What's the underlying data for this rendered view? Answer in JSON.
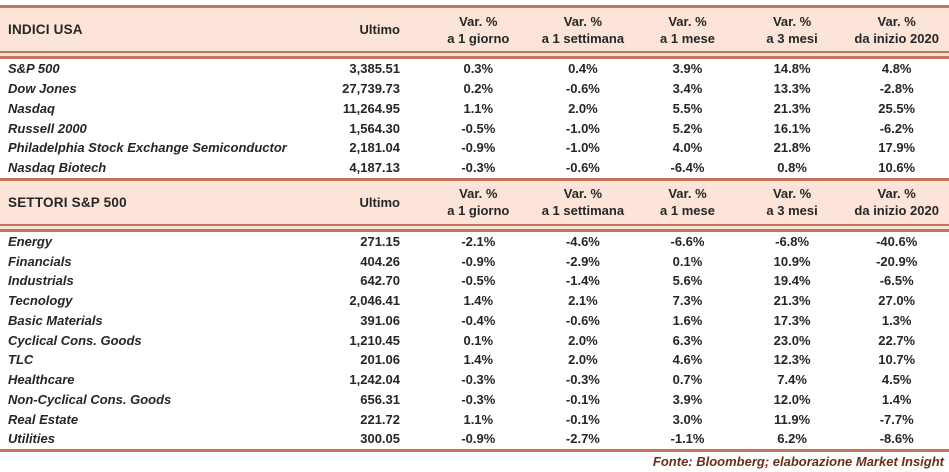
{
  "columns": {
    "ultimo": "Ultimo",
    "var_label": "Var. %",
    "periods": [
      "a 1 giorno",
      "a 1 settimana",
      "a 1 mese",
      "a 3 mesi",
      "da inizio 2020"
    ]
  },
  "sections": [
    {
      "title": "INDICI USA",
      "rows": [
        {
          "name": "S&P 500",
          "ultimo": "3,385.51",
          "vars": [
            "0.3%",
            "0.4%",
            "3.9%",
            "14.8%",
            "4.8%"
          ]
        },
        {
          "name": "Dow Jones",
          "ultimo": "27,739.73",
          "vars": [
            "0.2%",
            "-0.6%",
            "3.4%",
            "13.3%",
            "-2.8%"
          ]
        },
        {
          "name": "Nasdaq",
          "ultimo": "11,264.95",
          "vars": [
            "1.1%",
            "2.0%",
            "5.5%",
            "21.3%",
            "25.5%"
          ]
        },
        {
          "name": "Russell 2000",
          "ultimo": "1,564.30",
          "vars": [
            "-0.5%",
            "-1.0%",
            "5.2%",
            "16.1%",
            "-6.2%"
          ]
        },
        {
          "name": "Philadelphia Stock Exchange Semiconductor",
          "ultimo": "2,181.04",
          "vars": [
            "-0.9%",
            "-1.0%",
            "4.0%",
            "21.8%",
            "17.9%"
          ]
        },
        {
          "name": "Nasdaq Biotech",
          "ultimo": "4,187.13",
          "vars": [
            "-0.3%",
            "-0.6%",
            "-6.4%",
            "0.8%",
            "10.6%"
          ]
        }
      ]
    },
    {
      "title": "SETTORI S&P 500",
      "rows": [
        {
          "name": "Energy",
          "ultimo": "271.15",
          "vars": [
            "-2.1%",
            "-4.6%",
            "-6.6%",
            "-6.8%",
            "-40.6%"
          ]
        },
        {
          "name": "Financials",
          "ultimo": "404.26",
          "vars": [
            "-0.9%",
            "-2.9%",
            "0.1%",
            "10.9%",
            "-20.9%"
          ]
        },
        {
          "name": "Industrials",
          "ultimo": "642.70",
          "vars": [
            "-0.5%",
            "-1.4%",
            "5.6%",
            "19.4%",
            "-6.5%"
          ]
        },
        {
          "name": "Tecnology",
          "ultimo": "2,046.41",
          "vars": [
            "1.4%",
            "2.1%",
            "7.3%",
            "21.3%",
            "27.0%"
          ]
        },
        {
          "name": "Basic Materials",
          "ultimo": "391.06",
          "vars": [
            "-0.4%",
            "-0.6%",
            "1.6%",
            "17.3%",
            "1.3%"
          ]
        },
        {
          "name": "Cyclical Cons. Goods",
          "ultimo": "1,210.45",
          "vars": [
            "0.1%",
            "2.0%",
            "6.3%",
            "23.0%",
            "22.7%"
          ]
        },
        {
          "name": "TLC",
          "ultimo": "201.06",
          "vars": [
            "1.4%",
            "2.0%",
            "4.6%",
            "12.3%",
            "10.7%"
          ]
        },
        {
          "name": "Healthcare",
          "ultimo": "1,242.04",
          "vars": [
            "-0.3%",
            "-0.3%",
            "0.7%",
            "7.4%",
            "4.5%"
          ]
        },
        {
          "name": "Non-Cyclical Cons. Goods",
          "ultimo": "656.31",
          "vars": [
            "-0.3%",
            "-0.1%",
            "3.9%",
            "12.0%",
            "1.4%"
          ]
        },
        {
          "name": "Real Estate",
          "ultimo": "221.72",
          "vars": [
            "1.1%",
            "-0.1%",
            "3.0%",
            "11.9%",
            "-7.7%"
          ]
        },
        {
          "name": "Utilities",
          "ultimo": "300.05",
          "vars": [
            "-0.9%",
            "-2.7%",
            "-1.1%",
            "6.2%",
            "-8.6%"
          ]
        }
      ]
    }
  ],
  "footer": {
    "source": "Fonte: Bloomberg; elaborazione Market Insight"
  },
  "colors": {
    "header_bg": "#fce5d8",
    "rule_line": "#c4735c",
    "text": "#262626",
    "footer_text": "#6b2e17"
  },
  "chart_data": [
    {
      "type": "table",
      "title": "INDICI USA",
      "columns": [
        "Ultimo",
        "Var. % a 1 giorno",
        "Var. % a 1 settimana",
        "Var. % a 1 mese",
        "Var. % a 3 mesi",
        "Var. % da inizio 2020"
      ],
      "rows": [
        [
          "S&P 500",
          3385.51,
          0.3,
          0.4,
          3.9,
          14.8,
          4.8
        ],
        [
          "Dow Jones",
          27739.73,
          0.2,
          -0.6,
          3.4,
          13.3,
          -2.8
        ],
        [
          "Nasdaq",
          11264.95,
          1.1,
          2.0,
          5.5,
          21.3,
          25.5
        ],
        [
          "Russell 2000",
          1564.3,
          -0.5,
          -1.0,
          5.2,
          16.1,
          -6.2
        ],
        [
          "Philadelphia Stock Exchange Semiconductor",
          2181.04,
          -0.9,
          -1.0,
          4.0,
          21.8,
          17.9
        ],
        [
          "Nasdaq Biotech",
          4187.13,
          -0.3,
          -0.6,
          -6.4,
          0.8,
          10.6
        ]
      ]
    },
    {
      "type": "table",
      "title": "SETTORI S&P 500",
      "columns": [
        "Ultimo",
        "Var. % a 1 giorno",
        "Var. % a 1 settimana",
        "Var. % a 1 mese",
        "Var. % a 3 mesi",
        "Var. % da inizio 2020"
      ],
      "rows": [
        [
          "Energy",
          271.15,
          -2.1,
          -4.6,
          -6.6,
          -6.8,
          -40.6
        ],
        [
          "Financials",
          404.26,
          -0.9,
          -2.9,
          0.1,
          10.9,
          -20.9
        ],
        [
          "Industrials",
          642.7,
          -0.5,
          -1.4,
          5.6,
          19.4,
          -6.5
        ],
        [
          "Tecnology",
          2046.41,
          1.4,
          2.1,
          7.3,
          21.3,
          27.0
        ],
        [
          "Basic Materials",
          391.06,
          -0.4,
          -0.6,
          1.6,
          17.3,
          1.3
        ],
        [
          "Cyclical Cons. Goods",
          1210.45,
          0.1,
          2.0,
          6.3,
          23.0,
          22.7
        ],
        [
          "TLC",
          201.06,
          1.4,
          2.0,
          4.6,
          12.3,
          10.7
        ],
        [
          "Healthcare",
          1242.04,
          -0.3,
          -0.3,
          0.7,
          7.4,
          4.5
        ],
        [
          "Non-Cyclical Cons. Goods",
          656.31,
          -0.3,
          -0.1,
          3.9,
          12.0,
          1.4
        ],
        [
          "Real Estate",
          221.72,
          1.1,
          -0.1,
          3.0,
          11.9,
          -7.7
        ],
        [
          "Utilities",
          300.05,
          -0.9,
          -2.7,
          -1.1,
          6.2,
          -8.6
        ]
      ]
    }
  ]
}
